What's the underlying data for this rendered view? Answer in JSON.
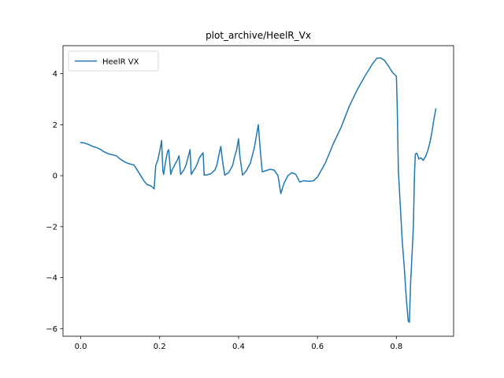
{
  "chart_data": {
    "type": "line",
    "title": "plot_archive/HeelR_Vx",
    "xlabel": "",
    "ylabel": "",
    "xlim": [
      -0.045,
      0.945
    ],
    "ylim": [
      -6.3,
      5.1
    ],
    "xticks": [
      0.0,
      0.2,
      0.4,
      0.6,
      0.8
    ],
    "xtick_labels": [
      "0.0",
      "0.2",
      "0.4",
      "0.6",
      "0.8"
    ],
    "yticks": [
      -6,
      -4,
      -2,
      0,
      2,
      4
    ],
    "ytick_labels": [
      "−6",
      "−4",
      "−2",
      "0",
      "2",
      "4"
    ],
    "grid": false,
    "legend": "upper-left",
    "series": [
      {
        "name": "HeelR VX",
        "color": "#1f77b4",
        "points": [
          [
            0.0,
            1.3
          ],
          [
            0.01,
            1.28
          ],
          [
            0.02,
            1.22
          ],
          [
            0.03,
            1.15
          ],
          [
            0.04,
            1.1
          ],
          [
            0.05,
            1.03
          ],
          [
            0.06,
            0.93
          ],
          [
            0.07,
            0.86
          ],
          [
            0.08,
            0.82
          ],
          [
            0.09,
            0.78
          ],
          [
            0.1,
            0.65
          ],
          [
            0.11,
            0.55
          ],
          [
            0.12,
            0.48
          ],
          [
            0.135,
            0.42
          ],
          [
            0.15,
            0.05
          ],
          [
            0.16,
            -0.2
          ],
          [
            0.168,
            -0.35
          ],
          [
            0.175,
            -0.38
          ],
          [
            0.182,
            -0.45
          ],
          [
            0.186,
            -0.52
          ],
          [
            0.19,
            0.4
          ],
          [
            0.195,
            0.6
          ],
          [
            0.2,
            0.95
          ],
          [
            0.205,
            1.38
          ],
          [
            0.208,
            0.2
          ],
          [
            0.21,
            0.05
          ],
          [
            0.215,
            0.55
          ],
          [
            0.22,
            0.95
          ],
          [
            0.223,
            1.02
          ],
          [
            0.228,
            0.05
          ],
          [
            0.232,
            0.25
          ],
          [
            0.236,
            0.35
          ],
          [
            0.24,
            0.48
          ],
          [
            0.245,
            0.62
          ],
          [
            0.249,
            0.78
          ],
          [
            0.253,
            0.05
          ],
          [
            0.258,
            0.15
          ],
          [
            0.262,
            0.25
          ],
          [
            0.267,
            0.42
          ],
          [
            0.272,
            0.72
          ],
          [
            0.277,
            1.02
          ],
          [
            0.28,
            0.05
          ],
          [
            0.285,
            0.18
          ],
          [
            0.29,
            0.3
          ],
          [
            0.295,
            0.45
          ],
          [
            0.3,
            0.68
          ],
          [
            0.305,
            0.8
          ],
          [
            0.31,
            0.9
          ],
          [
            0.313,
            0.02
          ],
          [
            0.32,
            0.03
          ],
          [
            0.33,
            0.08
          ],
          [
            0.34,
            0.22
          ],
          [
            0.345,
            0.42
          ],
          [
            0.35,
            0.8
          ],
          [
            0.355,
            1.15
          ],
          [
            0.36,
            0.5
          ],
          [
            0.365,
            0.02
          ],
          [
            0.375,
            0.12
          ],
          [
            0.385,
            0.4
          ],
          [
            0.39,
            0.75
          ],
          [
            0.395,
            1.0
          ],
          [
            0.4,
            1.45
          ],
          [
            0.403,
            0.8
          ],
          [
            0.41,
            0.02
          ],
          [
            0.42,
            0.2
          ],
          [
            0.43,
            0.5
          ],
          [
            0.44,
            1.1
          ],
          [
            0.445,
            1.55
          ],
          [
            0.45,
            2.0
          ],
          [
            0.455,
            1.0
          ],
          [
            0.46,
            0.15
          ],
          [
            0.47,
            0.2
          ],
          [
            0.48,
            0.25
          ],
          [
            0.49,
            0.22
          ],
          [
            0.5,
            0.0
          ],
          [
            0.507,
            -0.7
          ],
          [
            0.515,
            -0.3
          ],
          [
            0.525,
            0.0
          ],
          [
            0.535,
            0.12
          ],
          [
            0.545,
            0.05
          ],
          [
            0.555,
            -0.25
          ],
          [
            0.565,
            -0.2
          ],
          [
            0.58,
            -0.22
          ],
          [
            0.59,
            -0.2
          ],
          [
            0.6,
            -0.05
          ],
          [
            0.62,
            0.5
          ],
          [
            0.64,
            1.25
          ],
          [
            0.66,
            1.9
          ],
          [
            0.68,
            2.7
          ],
          [
            0.7,
            3.35
          ],
          [
            0.72,
            3.9
          ],
          [
            0.74,
            4.4
          ],
          [
            0.75,
            4.6
          ],
          [
            0.76,
            4.62
          ],
          [
            0.77,
            4.52
          ],
          [
            0.78,
            4.3
          ],
          [
            0.79,
            4.05
          ],
          [
            0.8,
            3.9
          ],
          [
            0.802,
            2.8
          ],
          [
            0.805,
            0.2
          ],
          [
            0.81,
            -1.2
          ],
          [
            0.815,
            -2.6
          ],
          [
            0.82,
            -3.6
          ],
          [
            0.825,
            -4.8
          ],
          [
            0.83,
            -5.7
          ],
          [
            0.833,
            -5.75
          ],
          [
            0.836,
            -4.2
          ],
          [
            0.84,
            -3.0
          ],
          [
            0.843,
            -2.0
          ],
          [
            0.846,
            0.1
          ],
          [
            0.848,
            0.85
          ],
          [
            0.852,
            0.88
          ],
          [
            0.857,
            0.65
          ],
          [
            0.862,
            0.7
          ],
          [
            0.868,
            0.6
          ],
          [
            0.874,
            0.75
          ],
          [
            0.88,
            1.0
          ],
          [
            0.885,
            1.3
          ],
          [
            0.89,
            1.7
          ],
          [
            0.895,
            2.2
          ],
          [
            0.9,
            2.62
          ]
        ]
      }
    ]
  }
}
